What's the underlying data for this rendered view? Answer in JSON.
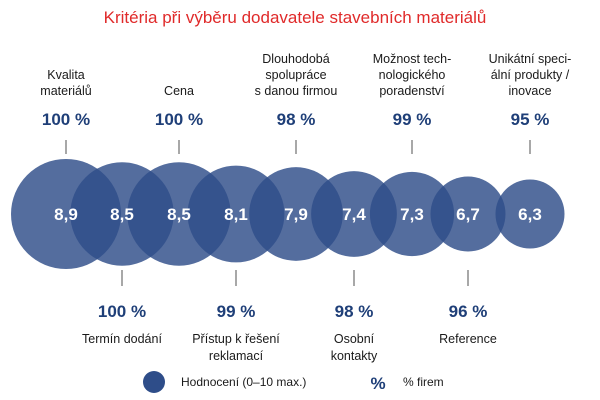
{
  "chart_data": {
    "type": "bubble",
    "title": "Kritéria při výběru dodavatele stavebních materiálů",
    "unit_suffix": " %",
    "series": [
      {
        "name": "Hodnocení (0–10 max.)",
        "values": [
          8.9,
          8.5,
          8.5,
          8.1,
          7.9,
          7.4,
          7.3,
          6.7,
          6.3
        ]
      },
      {
        "name": "% firem",
        "values": [
          100,
          100,
          100,
          99,
          98,
          98,
          99,
          96,
          95
        ]
      }
    ],
    "categories": [
      [
        "Kvalita",
        "materiálů"
      ],
      [
        "Termín dodání"
      ],
      [
        "Cena"
      ],
      [
        "Přístup k řešení",
        "reklamací"
      ],
      [
        "Dlouhodobá",
        "spolupráce",
        "s danou firmou"
      ],
      [
        "Osobní",
        "kontakty"
      ],
      [
        "Možnost tech-",
        "nologického",
        "poradenství"
      ],
      [
        "Reference"
      ],
      [
        "Unikátní speci-",
        "ální produkty /",
        "inovace"
      ]
    ],
    "label_position": [
      "top",
      "bottom",
      "top",
      "bottom",
      "top",
      "bottom",
      "top",
      "bottom",
      "top"
    ],
    "colors": {
      "bubble": "#2e4d89",
      "title": "#e02a2a",
      "percent": "#1f3f78",
      "text": "#1a1a1a",
      "connector": "#8a8a8a"
    },
    "legend": {
      "rating_label": "Hodnocení (0–10 max.)",
      "percent_symbol": "%",
      "percent_label": "% firem"
    },
    "legend_position": "bottom"
  }
}
